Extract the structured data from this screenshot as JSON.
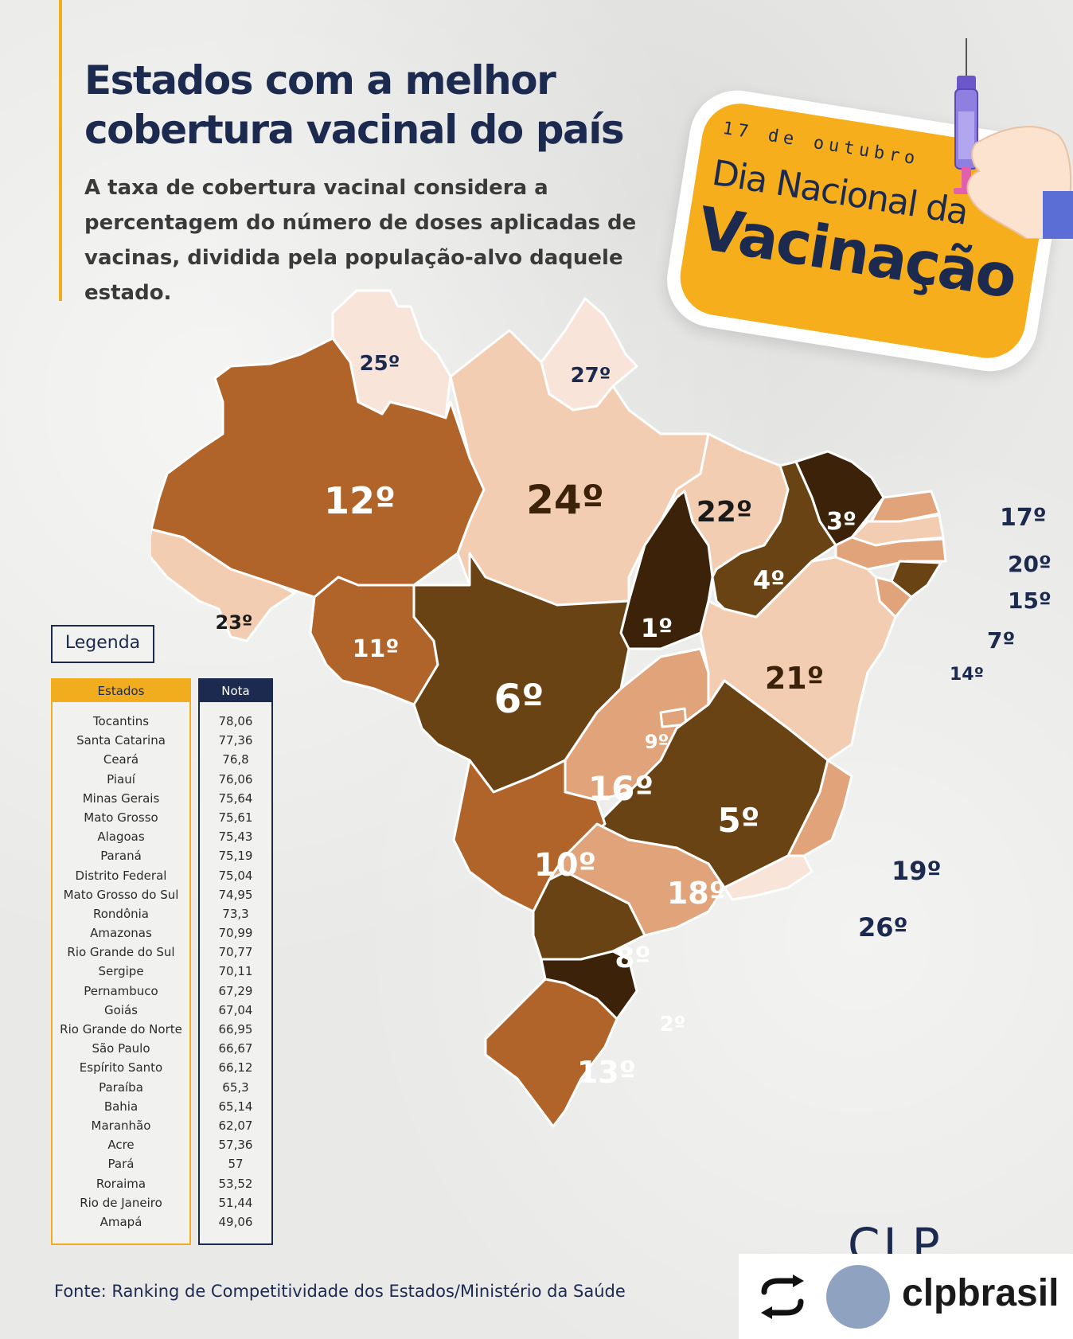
{
  "header": {
    "title": "Estados com a melhor cobertura vacinal do país",
    "subtitle": "A taxa de cobertura vacinal considera a percentagem do número de doses aplicadas de vacinas, dividida pela população-alvo daquele estado."
  },
  "badge": {
    "date": "17 de outubro",
    "line1": "Dia Nacional da",
    "line2": "Vacinação"
  },
  "map": {
    "ranks": {
      "RR": "25º",
      "AP": "27º",
      "AM": "12º",
      "PA": "24º",
      "MA": "22º",
      "CE": "3º",
      "RN": "17º",
      "PB": "20º",
      "PE": "15º",
      "AL": "7º",
      "SE": "14º",
      "PI": "4º",
      "TO": "1º",
      "BA": "21º",
      "AC": "23º",
      "RO": "11º",
      "MT": "6º",
      "GO": "16º",
      "DF": "9º",
      "MG": "5º",
      "ES": "19º",
      "RJ": "26º",
      "MS": "10º",
      "SP": "18º",
      "PR": "8º",
      "SC": "2º",
      "RS": "13º"
    }
  },
  "legend": {
    "title": "Legenda",
    "col_states": "Estados",
    "col_score": "Nota",
    "rows": [
      {
        "state": "Tocantins",
        "score": "78,06"
      },
      {
        "state": "Santa Catarina",
        "score": "77,36"
      },
      {
        "state": "Ceará",
        "score": "76,8"
      },
      {
        "state": "Piauí",
        "score": "76,06"
      },
      {
        "state": "Minas Gerais",
        "score": "75,64"
      },
      {
        "state": "Mato Grosso",
        "score": "75,61"
      },
      {
        "state": "Alagoas",
        "score": "75,43"
      },
      {
        "state": "Paraná",
        "score": "75,19"
      },
      {
        "state": "Distrito Federal",
        "score": "75,04"
      },
      {
        "state": "Mato Grosso do Sul",
        "score": "74,95"
      },
      {
        "state": "Rondônia",
        "score": "73,3"
      },
      {
        "state": "Amazonas",
        "score": "70,99"
      },
      {
        "state": "Rio Grande do Sul",
        "score": "70,77"
      },
      {
        "state": "Sergipe",
        "score": "70,11"
      },
      {
        "state": "Pernambuco",
        "score": "67,29"
      },
      {
        "state": "Goiás",
        "score": "67,04"
      },
      {
        "state": "Rio Grande do Norte",
        "score": "66,95"
      },
      {
        "state": "São Paulo",
        "score": "66,67"
      },
      {
        "state": "Espírito Santo",
        "score": "66,12"
      },
      {
        "state": "Paraíba",
        "score": "65,3"
      },
      {
        "state": "Bahia",
        "score": "65,14"
      },
      {
        "state": "Maranhão",
        "score": "62,07"
      },
      {
        "state": "Acre",
        "score": "57,36"
      },
      {
        "state": "Pará",
        "score": "57"
      },
      {
        "state": "Roraima",
        "score": "53,52"
      },
      {
        "state": "Rio de Janeiro",
        "score": "51,44"
      },
      {
        "state": "Amapá",
        "score": "49,06"
      }
    ]
  },
  "footer": {
    "source": "Fonte: Ranking de Competitividade dos Estados/Ministério da Saúde",
    "logo": "CLP"
  },
  "repost": {
    "username": "clpbrasil"
  },
  "colors": {
    "navy": "#1b2a4e",
    "gold": "#f2ad1f",
    "rank_1_3": "#3b2208",
    "rank_4_6": "#6a4314",
    "rank_7_13": "#b0642a",
    "rank_14_20": "#e0a37a",
    "rank_21_24": "#f3cdb2",
    "rank_25_27": "#f8e4d8"
  }
}
